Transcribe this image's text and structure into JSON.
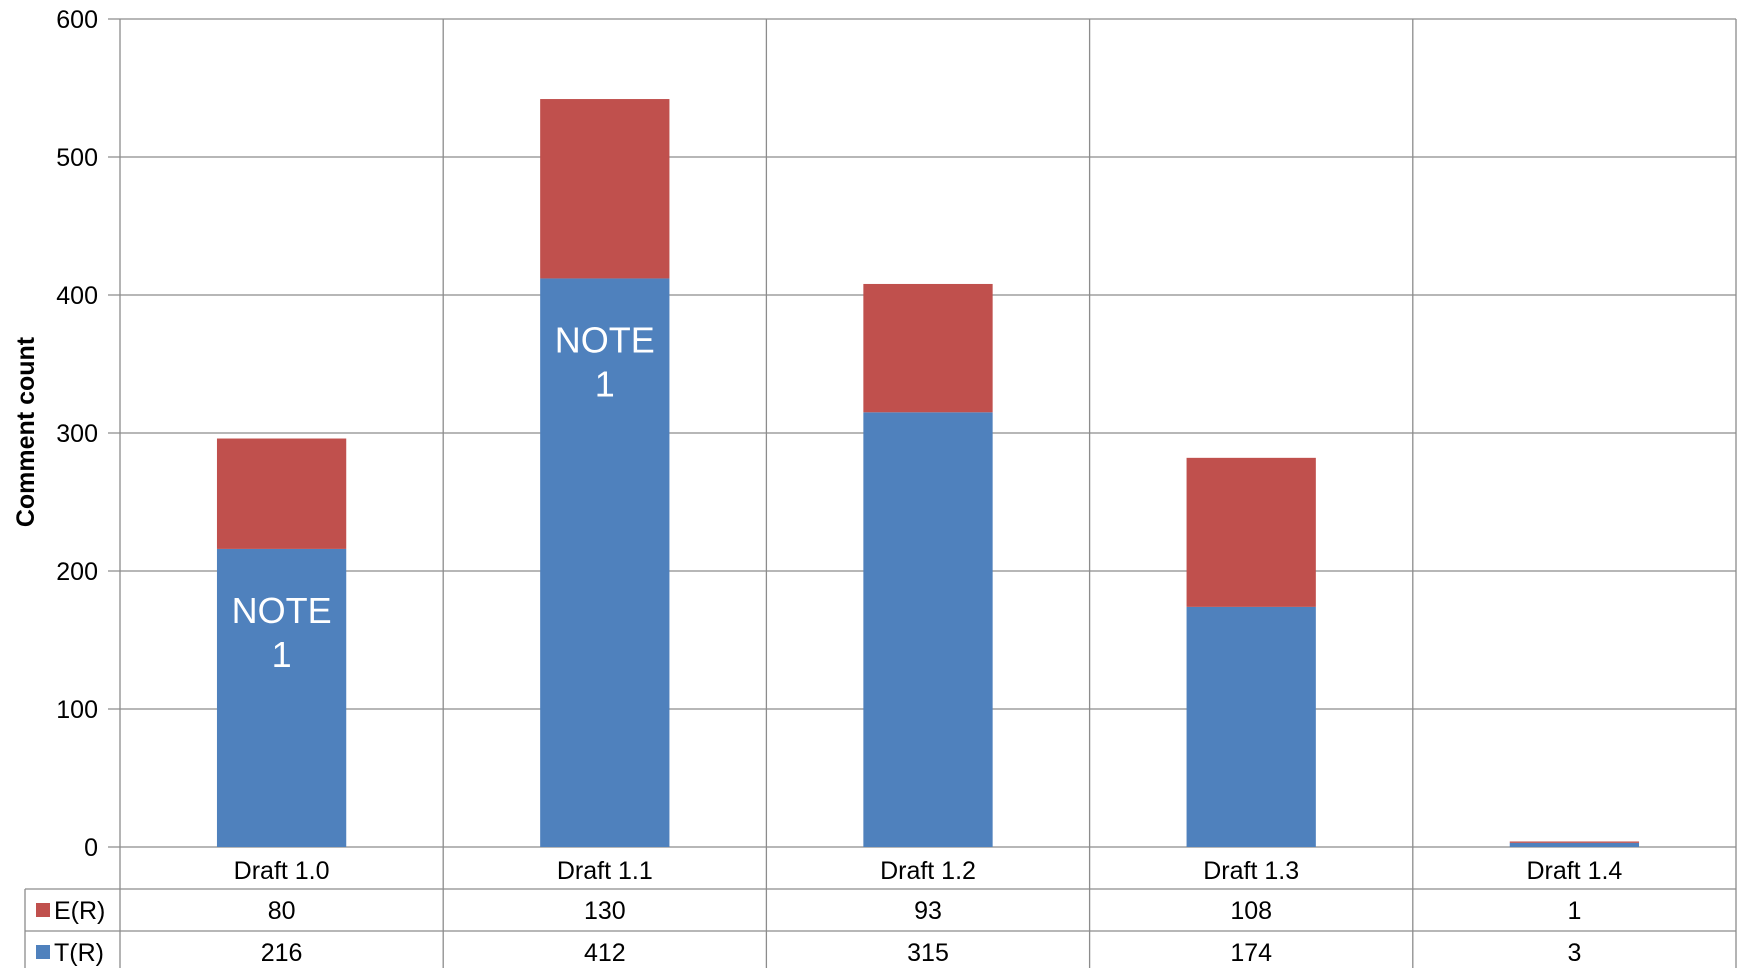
{
  "chart_data": {
    "type": "bar",
    "stacked": true,
    "categories": [
      "Draft 1.0",
      "Draft 1.1",
      "Draft 1.2",
      "Draft 1.3",
      "Draft 1.4"
    ],
    "series": [
      {
        "name": "T(R)",
        "values": [
          216,
          412,
          315,
          174,
          3
        ],
        "color": "#4F81BD"
      },
      {
        "name": "E(R)",
        "values": [
          80,
          130,
          93,
          108,
          1
        ],
        "color": "#C0504D"
      }
    ],
    "ylabel": "Comment count",
    "ylim": [
      0,
      600
    ],
    "yticks": [
      0,
      100,
      200,
      300,
      400,
      500,
      600
    ],
    "grid": true,
    "data_table": true,
    "annotations": [
      {
        "category": "Draft 1.0",
        "series": "T(R)",
        "text": "NOTE 1"
      },
      {
        "category": "Draft 1.1",
        "series": "T(R)",
        "text": "NOTE 1"
      }
    ]
  }
}
